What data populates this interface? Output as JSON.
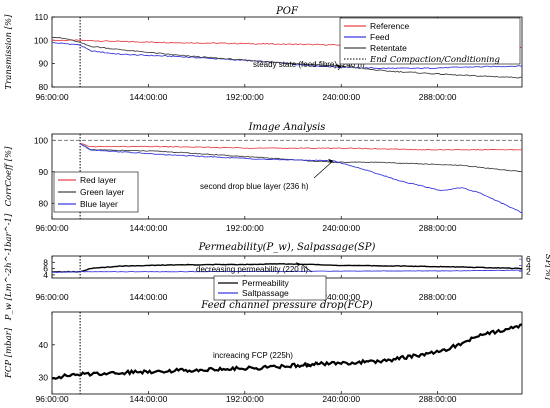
{
  "chart_data": [
    {
      "id": "pof",
      "type": "line",
      "title": "POF",
      "ylabel": "Transmission [%]",
      "x_ticks": [
        "96:00:00",
        "144:00:00",
        "192:00:00",
        "240:00:00",
        "288:00:00"
      ],
      "xlim": [
        96,
        330
      ],
      "ylim": [
        80,
        110
      ],
      "y_ticks": [
        80,
        90,
        100,
        110
      ],
      "vline": {
        "x": 110,
        "label": "End Compaction/Conditioning"
      },
      "legend_position": "top-right",
      "series": [
        {
          "name": "Reference",
          "color": "#e8474a",
          "x": [
            96,
            106,
            110,
            130,
            160,
            200,
            240,
            280,
            330
          ],
          "y": [
            100,
            100,
            100,
            99.5,
            99,
            98.5,
            98,
            97.5,
            97
          ]
        },
        {
          "name": "Feed",
          "color": "#3b3bdc",
          "x": [
            96,
            104,
            110,
            115,
            130,
            160,
            200,
            228,
            240,
            260,
            280,
            300,
            330
          ],
          "y": [
            99,
            98.5,
            98,
            95.5,
            94,
            93,
            91,
            89,
            88.5,
            88,
            88,
            88.5,
            89
          ]
        },
        {
          "name": "Retentate",
          "color": "#444444",
          "x": [
            96,
            104,
            110,
            115,
            130,
            160,
            200,
            228,
            240,
            260,
            280,
            300,
            330
          ],
          "y": [
            101.5,
            100.5,
            99,
            97.5,
            96,
            93.5,
            91,
            89.5,
            89,
            87,
            86,
            85,
            84
          ]
        }
      ],
      "annotation": {
        "text": "steady state (feed fibre) (240 h)",
        "x": 240,
        "y": 89
      }
    },
    {
      "id": "image-analysis",
      "type": "line",
      "title": "Image Analysis",
      "ylabel": "CorrCoeff [%]",
      "x_ticks": [
        "96:00:00",
        "144:00:00",
        "192:00:00",
        "240:00:00",
        "288:00:00"
      ],
      "xlim": [
        96,
        330
      ],
      "ylim": [
        75,
        102
      ],
      "y_ticks": [
        80,
        90,
        100
      ],
      "hline": 100,
      "vline": {
        "x": 110
      },
      "legend_position": "bottom-left",
      "series": [
        {
          "name": "Red layer",
          "color": "#e8474a",
          "x": [
            110,
            115,
            150,
            200,
            240,
            280,
            330
          ],
          "y": [
            99,
            98,
            98,
            97.5,
            97.5,
            97,
            97
          ]
        },
        {
          "name": "Green layer",
          "color": "#444444",
          "x": [
            110,
            115,
            150,
            200,
            236,
            260,
            300,
            330
          ],
          "y": [
            99,
            97,
            96.5,
            94.5,
            93,
            93,
            92,
            90
          ]
        },
        {
          "name": "Blue layer",
          "color": "#3b3bdc",
          "x": [
            110,
            115,
            150,
            200,
            236,
            250,
            270,
            290,
            300,
            310,
            320,
            330
          ],
          "y": [
            99,
            97,
            95.5,
            94,
            93.5,
            91,
            87,
            84,
            85,
            83,
            80,
            77
          ]
        }
      ],
      "annotation": {
        "text": "second drop blue layer (236 h)",
        "x": 236,
        "y": 93.5
      }
    },
    {
      "id": "permeability",
      "type": "line",
      "title": "Permeability(P_w), Salpassage(SP)",
      "ylabel": "P_w [Lm^-2h^-1bar^-1]",
      "y2label": "SP[%]",
      "x_ticks": [
        "96:00:00",
        "144:00:00",
        "192:00:00",
        "240:00:00",
        "288:00:00"
      ],
      "xlim": [
        96,
        330
      ],
      "ylim": [
        3,
        10
      ],
      "y_ticks": [
        4,
        6,
        8
      ],
      "y2lim": [
        0,
        7
      ],
      "y2_ticks": [
        2,
        4,
        6
      ],
      "vline": {
        "x": 110
      },
      "legend_position": "bottom-center",
      "series": [
        {
          "name": "Permeability",
          "color": "#000000",
          "x": [
            96,
            110,
            115,
            130,
            160,
            190,
            210,
            220,
            240,
            270,
            300,
            330
          ],
          "y": [
            5,
            5,
            6,
            6.8,
            7.2,
            7.3,
            7.5,
            7.4,
            7,
            6.8,
            6.5,
            6
          ]
        },
        {
          "name": "Saltpassage",
          "color": "#3b3bdc",
          "axis": "right",
          "x": [
            96,
            110,
            150,
            200,
            250,
            300,
            330
          ],
          "y": [
            1.8,
            2,
            2,
            2.1,
            2.2,
            2.3,
            2.5
          ]
        }
      ],
      "annotation": {
        "text": "decreasing permeability (220 h)",
        "x": 220,
        "y": 7.4
      }
    },
    {
      "id": "fcp",
      "type": "line",
      "title": "Feed channel pressure drop(FCP)",
      "ylabel": "FCP [mbar]",
      "x_ticks": [
        "96:00:00",
        "144:00:00",
        "192:00:00",
        "240:00:00",
        "288:00:00"
      ],
      "xlim": [
        96,
        330
      ],
      "ylim": [
        25,
        50
      ],
      "y_ticks": [
        30,
        40
      ],
      "vline": {
        "x": 110
      },
      "series": [
        {
          "name": "FCP",
          "color": "#000000",
          "x": [
            96,
            110,
            150,
            200,
            225,
            260,
            290,
            310,
            330
          ],
          "y": [
            30,
            31,
            32,
            33,
            34,
            35,
            38,
            43,
            46
          ]
        }
      ],
      "annotation": {
        "text": "increacing FCP (225h)",
        "x": 225,
        "y": 34
      }
    }
  ]
}
